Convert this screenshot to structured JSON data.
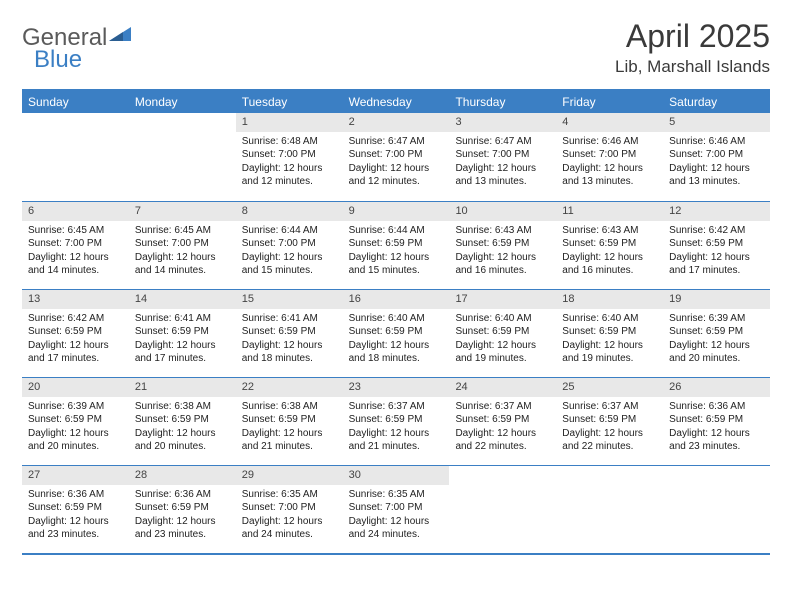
{
  "brand": {
    "part1": "General",
    "part2": "Blue"
  },
  "title": "April 2025",
  "location": "Lib, Marshall Islands",
  "day_headers": [
    "Sunday",
    "Monday",
    "Tuesday",
    "Wednesday",
    "Thursday",
    "Friday",
    "Saturday"
  ],
  "colors": {
    "accent": "#3b7fc4",
    "header_text": "#ffffff",
    "daynum_bg": "#e8e8e8",
    "text": "#222222"
  },
  "weeks": [
    [
      {
        "empty": true
      },
      {
        "empty": true
      },
      {
        "num": "1",
        "sunrise": "Sunrise: 6:48 AM",
        "sunset": "Sunset: 7:00 PM",
        "daylight": "Daylight: 12 hours and 12 minutes."
      },
      {
        "num": "2",
        "sunrise": "Sunrise: 6:47 AM",
        "sunset": "Sunset: 7:00 PM",
        "daylight": "Daylight: 12 hours and 12 minutes."
      },
      {
        "num": "3",
        "sunrise": "Sunrise: 6:47 AM",
        "sunset": "Sunset: 7:00 PM",
        "daylight": "Daylight: 12 hours and 13 minutes."
      },
      {
        "num": "4",
        "sunrise": "Sunrise: 6:46 AM",
        "sunset": "Sunset: 7:00 PM",
        "daylight": "Daylight: 12 hours and 13 minutes."
      },
      {
        "num": "5",
        "sunrise": "Sunrise: 6:46 AM",
        "sunset": "Sunset: 7:00 PM",
        "daylight": "Daylight: 12 hours and 13 minutes."
      }
    ],
    [
      {
        "num": "6",
        "sunrise": "Sunrise: 6:45 AM",
        "sunset": "Sunset: 7:00 PM",
        "daylight": "Daylight: 12 hours and 14 minutes."
      },
      {
        "num": "7",
        "sunrise": "Sunrise: 6:45 AM",
        "sunset": "Sunset: 7:00 PM",
        "daylight": "Daylight: 12 hours and 14 minutes."
      },
      {
        "num": "8",
        "sunrise": "Sunrise: 6:44 AM",
        "sunset": "Sunset: 7:00 PM",
        "daylight": "Daylight: 12 hours and 15 minutes."
      },
      {
        "num": "9",
        "sunrise": "Sunrise: 6:44 AM",
        "sunset": "Sunset: 6:59 PM",
        "daylight": "Daylight: 12 hours and 15 minutes."
      },
      {
        "num": "10",
        "sunrise": "Sunrise: 6:43 AM",
        "sunset": "Sunset: 6:59 PM",
        "daylight": "Daylight: 12 hours and 16 minutes."
      },
      {
        "num": "11",
        "sunrise": "Sunrise: 6:43 AM",
        "sunset": "Sunset: 6:59 PM",
        "daylight": "Daylight: 12 hours and 16 minutes."
      },
      {
        "num": "12",
        "sunrise": "Sunrise: 6:42 AM",
        "sunset": "Sunset: 6:59 PM",
        "daylight": "Daylight: 12 hours and 17 minutes."
      }
    ],
    [
      {
        "num": "13",
        "sunrise": "Sunrise: 6:42 AM",
        "sunset": "Sunset: 6:59 PM",
        "daylight": "Daylight: 12 hours and 17 minutes."
      },
      {
        "num": "14",
        "sunrise": "Sunrise: 6:41 AM",
        "sunset": "Sunset: 6:59 PM",
        "daylight": "Daylight: 12 hours and 17 minutes."
      },
      {
        "num": "15",
        "sunrise": "Sunrise: 6:41 AM",
        "sunset": "Sunset: 6:59 PM",
        "daylight": "Daylight: 12 hours and 18 minutes."
      },
      {
        "num": "16",
        "sunrise": "Sunrise: 6:40 AM",
        "sunset": "Sunset: 6:59 PM",
        "daylight": "Daylight: 12 hours and 18 minutes."
      },
      {
        "num": "17",
        "sunrise": "Sunrise: 6:40 AM",
        "sunset": "Sunset: 6:59 PM",
        "daylight": "Daylight: 12 hours and 19 minutes."
      },
      {
        "num": "18",
        "sunrise": "Sunrise: 6:40 AM",
        "sunset": "Sunset: 6:59 PM",
        "daylight": "Daylight: 12 hours and 19 minutes."
      },
      {
        "num": "19",
        "sunrise": "Sunrise: 6:39 AM",
        "sunset": "Sunset: 6:59 PM",
        "daylight": "Daylight: 12 hours and 20 minutes."
      }
    ],
    [
      {
        "num": "20",
        "sunrise": "Sunrise: 6:39 AM",
        "sunset": "Sunset: 6:59 PM",
        "daylight": "Daylight: 12 hours and 20 minutes."
      },
      {
        "num": "21",
        "sunrise": "Sunrise: 6:38 AM",
        "sunset": "Sunset: 6:59 PM",
        "daylight": "Daylight: 12 hours and 20 minutes."
      },
      {
        "num": "22",
        "sunrise": "Sunrise: 6:38 AM",
        "sunset": "Sunset: 6:59 PM",
        "daylight": "Daylight: 12 hours and 21 minutes."
      },
      {
        "num": "23",
        "sunrise": "Sunrise: 6:37 AM",
        "sunset": "Sunset: 6:59 PM",
        "daylight": "Daylight: 12 hours and 21 minutes."
      },
      {
        "num": "24",
        "sunrise": "Sunrise: 6:37 AM",
        "sunset": "Sunset: 6:59 PM",
        "daylight": "Daylight: 12 hours and 22 minutes."
      },
      {
        "num": "25",
        "sunrise": "Sunrise: 6:37 AM",
        "sunset": "Sunset: 6:59 PM",
        "daylight": "Daylight: 12 hours and 22 minutes."
      },
      {
        "num": "26",
        "sunrise": "Sunrise: 6:36 AM",
        "sunset": "Sunset: 6:59 PM",
        "daylight": "Daylight: 12 hours and 23 minutes."
      }
    ],
    [
      {
        "num": "27",
        "sunrise": "Sunrise: 6:36 AM",
        "sunset": "Sunset: 6:59 PM",
        "daylight": "Daylight: 12 hours and 23 minutes."
      },
      {
        "num": "28",
        "sunrise": "Sunrise: 6:36 AM",
        "sunset": "Sunset: 6:59 PM",
        "daylight": "Daylight: 12 hours and 23 minutes."
      },
      {
        "num": "29",
        "sunrise": "Sunrise: 6:35 AM",
        "sunset": "Sunset: 7:00 PM",
        "daylight": "Daylight: 12 hours and 24 minutes."
      },
      {
        "num": "30",
        "sunrise": "Sunrise: 6:35 AM",
        "sunset": "Sunset: 7:00 PM",
        "daylight": "Daylight: 12 hours and 24 minutes."
      },
      {
        "empty": true
      },
      {
        "empty": true
      },
      {
        "empty": true
      }
    ]
  ]
}
